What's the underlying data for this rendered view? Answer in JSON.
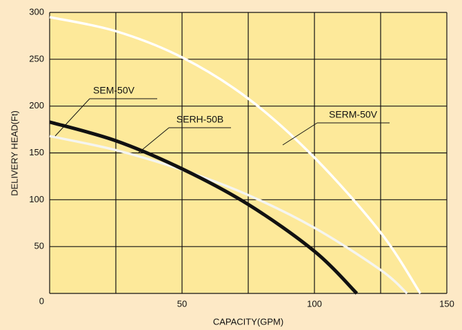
{
  "chart_data": {
    "type": "line",
    "x_label": "CAPACITY(GPM)",
    "y_label": "DELIVERY HEAD(Ft)",
    "xlim": [
      0,
      150
    ],
    "xticks": [
      0,
      25,
      50,
      75,
      100,
      125,
      150
    ],
    "xtick_labels_shown": [
      50,
      100,
      150
    ],
    "ylim": [
      0,
      300
    ],
    "yticks": [
      0,
      50,
      100,
      150,
      200,
      250,
      300
    ],
    "grid": true,
    "series": [
      {
        "name": "SEM-50V",
        "color": "#f5f5f0",
        "x": [
          0,
          25,
          50,
          75,
          100,
          125,
          135
        ],
        "values": [
          168,
          153,
          132,
          105,
          70,
          25,
          0
        ]
      },
      {
        "name": "SERH-50B",
        "color": "#111111",
        "x": [
          0,
          25,
          50,
          75,
          100,
          116
        ],
        "values": [
          183,
          163,
          133,
          95,
          45,
          0
        ]
      },
      {
        "name": "SERM-50V",
        "color": "#ffffff",
        "x": [
          0,
          25,
          50,
          75,
          100,
          125,
          140
        ],
        "values": [
          295,
          280,
          252,
          208,
          145,
          65,
          0
        ]
      }
    ]
  }
}
